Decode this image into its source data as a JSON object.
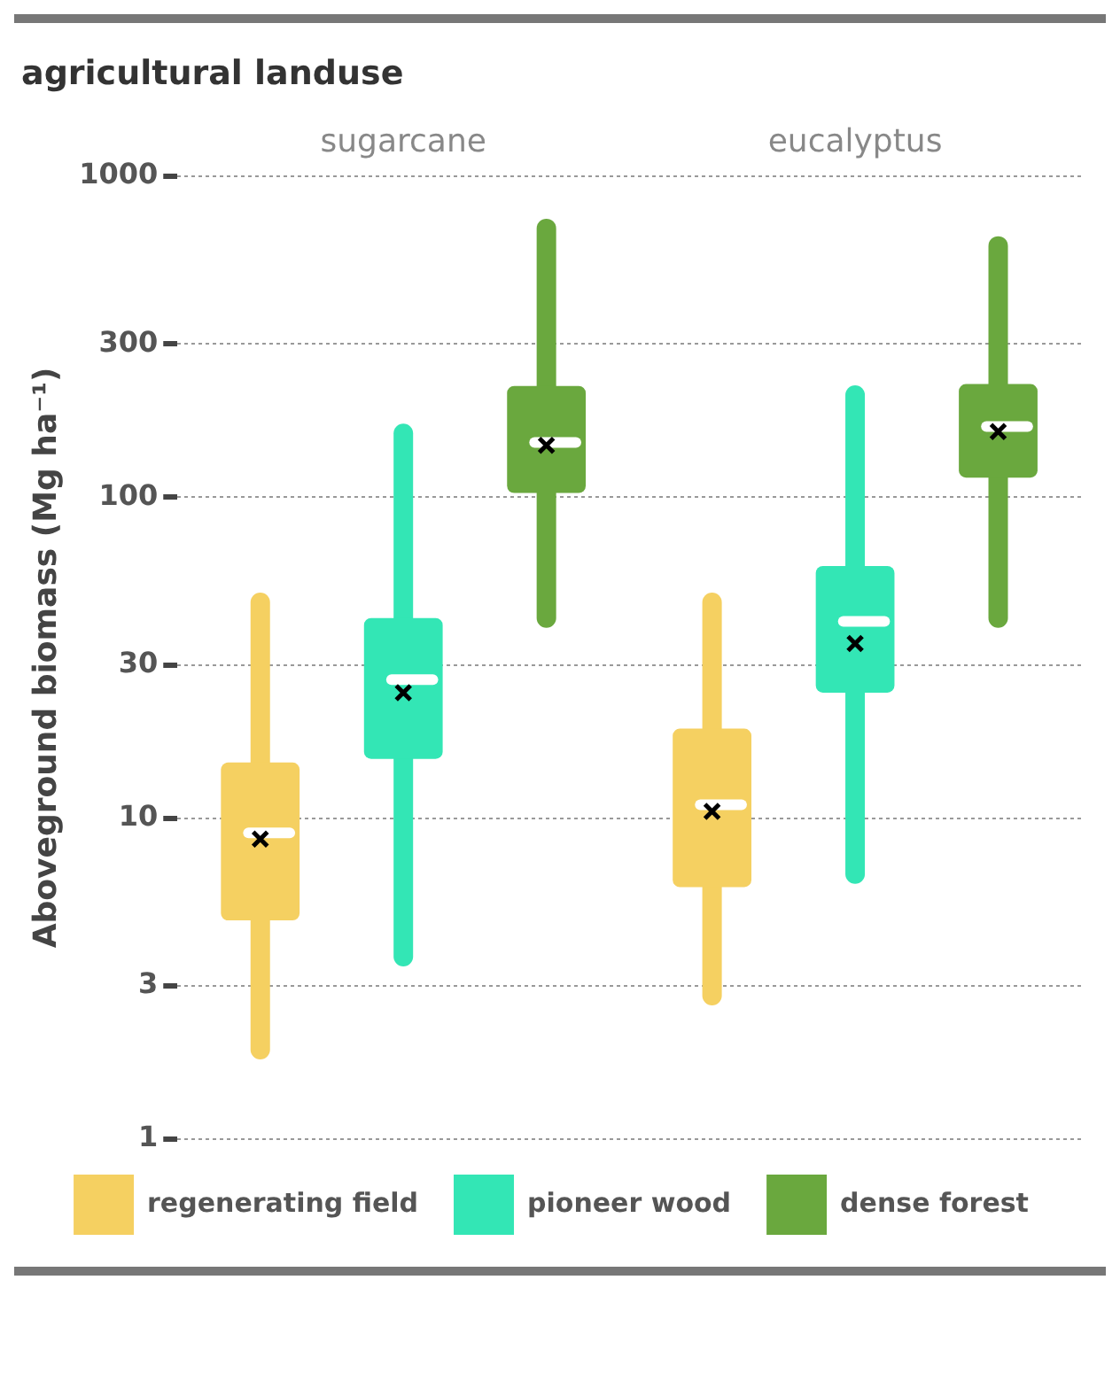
{
  "chart_data": {
    "type": "box",
    "title": "agricultural landuse",
    "ylabel": "Aboveground biomass (Mg ha⁻¹)",
    "categories": [
      "sugarcane",
      "eucalyptus"
    ],
    "log": "y",
    "ylim": [
      1,
      1000
    ],
    "yticks": [
      1,
      3,
      10,
      30,
      100,
      300,
      1000
    ],
    "grid": "y",
    "legend": "bottom",
    "series": [
      {
        "name": "regenerating field",
        "color": "#f5d061",
        "boxes": [
          {
            "low": 1.9,
            "q1": 4.8,
            "median": 9,
            "q3": 14.9,
            "high": 47,
            "mean": 8.6
          },
          {
            "low": 2.8,
            "q1": 6.1,
            "median": 11,
            "q3": 19,
            "high": 47,
            "mean": 10.5
          }
        ]
      },
      {
        "name": "pioneer wood",
        "color": "#33e6b5",
        "boxes": [
          {
            "low": 3.7,
            "q1": 15.3,
            "median": 27,
            "q3": 42,
            "high": 158,
            "mean": 24.6
          },
          {
            "low": 6.7,
            "q1": 24.6,
            "median": 41,
            "q3": 61,
            "high": 208,
            "mean": 35
          }
        ]
      },
      {
        "name": "dense forest",
        "color": "#6aa83e",
        "boxes": [
          {
            "low": 42,
            "q1": 103,
            "median": 148,
            "q3": 222,
            "high": 687,
            "mean": 145
          },
          {
            "low": 42,
            "q1": 115,
            "median": 166,
            "q3": 225,
            "high": 606,
            "mean": 160
          }
        ]
      }
    ]
  }
}
